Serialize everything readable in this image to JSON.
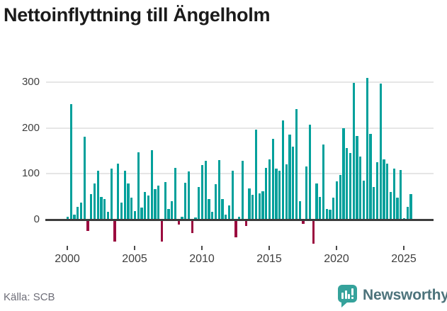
{
  "header": {
    "title": "Nettoinflyttning till Ängelholm"
  },
  "footer": {
    "source": "Källa: SCB",
    "brand": "Newsworthy",
    "logo_icon": "bar-chart-speech-bubble"
  },
  "colors": {
    "positive_bar": "#00A09B",
    "negative_bar": "#9B0C3F",
    "axis_line": "#3d3d3d",
    "grid_line": "#e6e6e6",
    "axis_text": "#3f3f3f",
    "brand_teal": "#35a29b"
  },
  "chart_data": {
    "type": "bar",
    "title": "Nettoinflyttning till Ängelholm",
    "xlabel": "",
    "ylabel": "",
    "grid": "horizontal",
    "y_ticks": [
      0,
      100,
      200,
      300
    ],
    "x_ticks": [
      2000,
      2005,
      2010,
      2015,
      2020,
      2025
    ],
    "ylim": [
      -60,
      320
    ],
    "x_start_quarter": "2000-Q1",
    "x_end_quarter": "2025-Q3",
    "frequency": "quarterly",
    "values_by_year": {
      "2000": [
        5,
        250,
        9,
        26
      ],
      "2001": [
        36,
        180,
        -22,
        54
      ],
      "2002": [
        77,
        105,
        48,
        43
      ],
      "2003": [
        16,
        110,
        -45,
        121
      ],
      "2004": [
        35,
        105,
        78,
        46
      ],
      "2005": [
        17,
        146,
        25,
        58
      ],
      "2006": [
        51,
        150,
        65,
        73
      ],
      "2007": [
        -45,
        80,
        21,
        39
      ],
      "2008": [
        111,
        -8,
        4,
        79
      ],
      "2009": [
        103,
        -26,
        3,
        70
      ],
      "2010": [
        117,
        127,
        44,
        15
      ],
      "2011": [
        76,
        128,
        43,
        9
      ],
      "2012": [
        30,
        105,
        -35,
        5
      ],
      "2013": [
        127,
        -11,
        66,
        52
      ],
      "2014": [
        195,
        56,
        60,
        112
      ],
      "2015": [
        130,
        175,
        110,
        105
      ],
      "2016": [
        215,
        119,
        184,
        157
      ],
      "2017": [
        239,
        38,
        -6,
        115
      ],
      "2018": [
        205,
        -50,
        78,
        48
      ],
      "2019": [
        162,
        21,
        20,
        46
      ],
      "2020": [
        82,
        96,
        198,
        154
      ],
      "2021": [
        143,
        296,
        181,
        136
      ],
      "2022": [
        83,
        307,
        185,
        70
      ],
      "2023": [
        124,
        295,
        130,
        121
      ],
      "2024": [
        58,
        110,
        46,
        107
      ],
      "2025": [
        2,
        26,
        54
      ]
    }
  }
}
